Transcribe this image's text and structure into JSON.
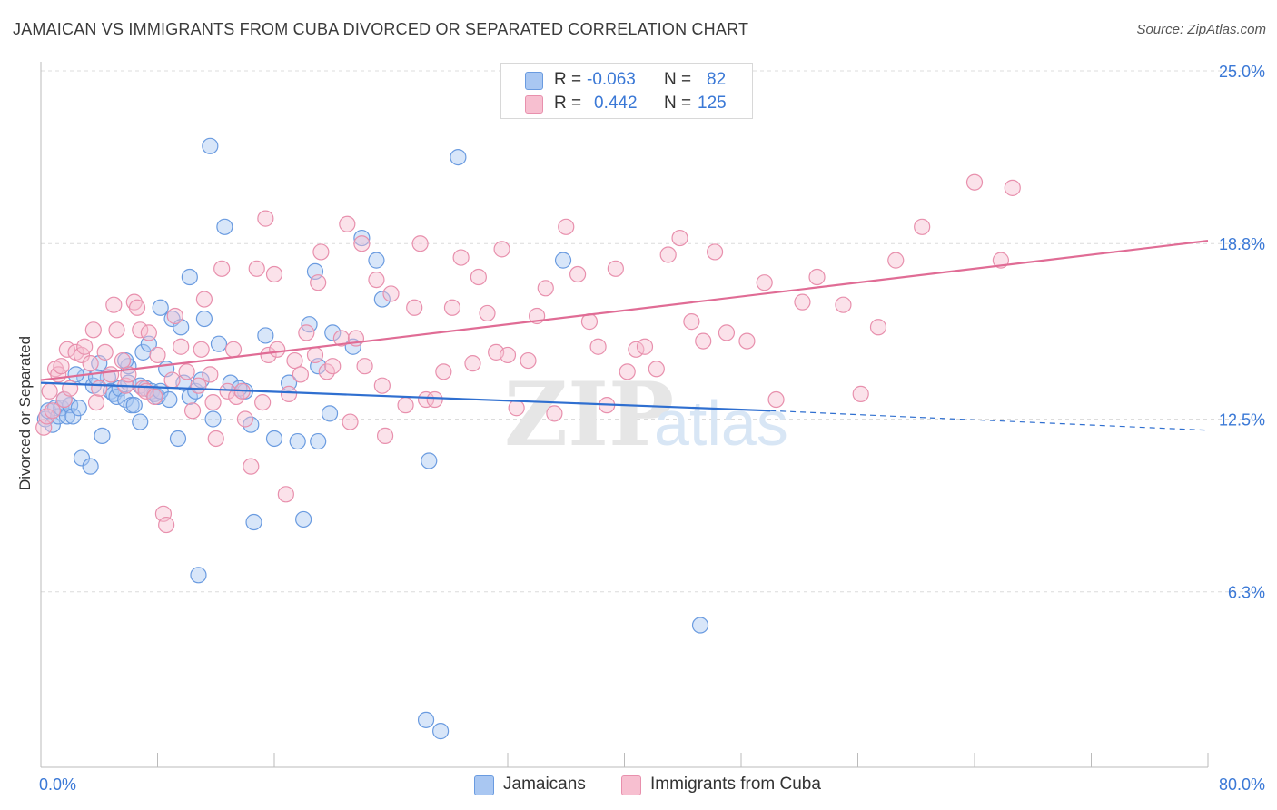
{
  "title": "JAMAICAN VS IMMIGRANTS FROM CUBA DIVORCED OR SEPARATED CORRELATION CHART",
  "source": "Source: ZipAtlas.com",
  "watermark": {
    "zip": "ZIP",
    "atlas": "atlas"
  },
  "legend": {
    "r_label": "R =",
    "n_label": "N =",
    "entries": [
      {
        "r": "-0.063",
        "n": "82",
        "color": "#a9c7f2",
        "border": "#6a9be0"
      },
      {
        "r": "0.442",
        "n": "125",
        "color": "#f7bfd0",
        "border": "#e890ad"
      }
    ]
  },
  "chart_data": {
    "type": "scatter",
    "xlabel": "",
    "ylabel": "Divorced or Separated",
    "xlim": [
      0,
      80
    ],
    "ylim": [
      0,
      25.0
    ],
    "x_tick_labels": [
      {
        "value": 0,
        "label": "0.0%"
      },
      {
        "value": 80,
        "label": "80.0%"
      }
    ],
    "y_tick_labels": [
      {
        "value": 6.3,
        "label": "6.3%"
      },
      {
        "value": 12.5,
        "label": "12.5%"
      },
      {
        "value": 18.8,
        "label": "18.8%"
      },
      {
        "value": 25.0,
        "label": "25.0%"
      }
    ],
    "grid": true,
    "series": [
      {
        "name": "Jamaicans",
        "color": "#6a9be0",
        "fill": "#a9c7f2",
        "line_color": "#2f6fd0",
        "trend": {
          "x0": 0,
          "y0": 13.8,
          "x1": 50,
          "y1": 12.8,
          "dash_to_x": 80,
          "dash_to_y": 12.1
        },
        "points": [
          [
            0.3,
            12.5
          ],
          [
            0.5,
            12.8
          ],
          [
            0.8,
            12.3
          ],
          [
            1,
            12.9
          ],
          [
            1.2,
            12.6
          ],
          [
            1.4,
            12.9
          ],
          [
            1.8,
            12.6
          ],
          [
            2,
            13
          ],
          [
            2.2,
            12.6
          ],
          [
            2.6,
            12.9
          ],
          [
            2.8,
            11.1
          ],
          [
            3,
            14
          ],
          [
            3.4,
            10.8
          ],
          [
            3.6,
            13.7
          ],
          [
            4,
            14.5
          ],
          [
            4.2,
            11.9
          ],
          [
            4.6,
            14
          ],
          [
            4.8,
            13.5
          ],
          [
            5,
            13.4
          ],
          [
            5.2,
            13.3
          ],
          [
            5.4,
            13.6
          ],
          [
            5.8,
            13.2
          ],
          [
            6,
            13.8
          ],
          [
            6,
            14.4
          ],
          [
            6.2,
            13
          ],
          [
            6.4,
            13
          ],
          [
            6.8,
            13.7
          ],
          [
            6.8,
            12.4
          ],
          [
            7,
            14.9
          ],
          [
            7.2,
            13.6
          ],
          [
            7.4,
            15.2
          ],
          [
            7.6,
            13.5
          ],
          [
            7.8,
            13.4
          ],
          [
            8,
            13.3
          ],
          [
            8.2,
            13.5
          ],
          [
            8.2,
            16.5
          ],
          [
            8.6,
            14.3
          ],
          [
            8.8,
            13.2
          ],
          [
            9,
            16.1
          ],
          [
            9.4,
            11.8
          ],
          [
            9.6,
            15.8
          ],
          [
            10.2,
            13.3
          ],
          [
            10.2,
            17.6
          ],
          [
            10.6,
            13.5
          ],
          [
            10.8,
            6.9
          ],
          [
            11,
            13.9
          ],
          [
            11.2,
            16.1
          ],
          [
            11.6,
            22.3
          ],
          [
            11.8,
            12.5
          ],
          [
            12.2,
            15.2
          ],
          [
            12.6,
            19.4
          ],
          [
            13,
            13.8
          ],
          [
            14,
            13.5
          ],
          [
            14.4,
            12.3
          ],
          [
            14.6,
            8.8
          ],
          [
            15.4,
            15.5
          ],
          [
            16,
            11.8
          ],
          [
            17,
            13.8
          ],
          [
            17.6,
            11.7
          ],
          [
            18,
            8.9
          ],
          [
            18.4,
            15.9
          ],
          [
            19,
            11.7
          ],
          [
            19,
            14.4
          ],
          [
            19.8,
            12.7
          ],
          [
            20,
            15.6
          ],
          [
            21.4,
            15.1
          ],
          [
            22,
            19
          ],
          [
            23,
            18.2
          ],
          [
            23.4,
            16.8
          ],
          [
            26.4,
            1.7
          ],
          [
            26.6,
            11
          ],
          [
            27.4,
            1.3
          ],
          [
            28.6,
            21.9
          ],
          [
            35.8,
            18.2
          ],
          [
            45.2,
            5.1
          ],
          [
            13.6,
            13.6
          ],
          [
            9.8,
            13.8
          ],
          [
            5.8,
            14.6
          ],
          [
            3.8,
            14
          ],
          [
            2.4,
            14.1
          ],
          [
            1.6,
            13.2
          ],
          [
            18.8,
            17.8
          ]
        ]
      },
      {
        "name": "Immigrants from Cuba",
        "color": "#e890ad",
        "fill": "#f7bfd0",
        "line_color": "#e06c95",
        "trend": {
          "x0": 0,
          "y0": 13.9,
          "x1": 80,
          "y1": 18.9
        },
        "points": [
          [
            0.2,
            12.2
          ],
          [
            0.4,
            12.6
          ],
          [
            0.6,
            13.5
          ],
          [
            0.8,
            12.8
          ],
          [
            1,
            14.3
          ],
          [
            1.2,
            14.1
          ],
          [
            1.4,
            14.4
          ],
          [
            1.6,
            13.2
          ],
          [
            1.8,
            15
          ],
          [
            2,
            13.6
          ],
          [
            2.4,
            14.9
          ],
          [
            2.8,
            14.8
          ],
          [
            3,
            15.1
          ],
          [
            3.4,
            14.5
          ],
          [
            3.6,
            15.7
          ],
          [
            3.8,
            13.1
          ],
          [
            4,
            13.6
          ],
          [
            4.4,
            14.9
          ],
          [
            4.8,
            14.1
          ],
          [
            5,
            16.6
          ],
          [
            5.2,
            15.7
          ],
          [
            5.6,
            14.6
          ],
          [
            5.8,
            13.7
          ],
          [
            6,
            14.1
          ],
          [
            6.4,
            16.7
          ],
          [
            6.6,
            16.5
          ],
          [
            6.8,
            15.7
          ],
          [
            7,
            13.6
          ],
          [
            7.2,
            13.5
          ],
          [
            7.4,
            15.6
          ],
          [
            7.8,
            13.3
          ],
          [
            8,
            14.8
          ],
          [
            8.4,
            9.1
          ],
          [
            8.6,
            8.7
          ],
          [
            9,
            13.9
          ],
          [
            9.2,
            16.2
          ],
          [
            9.6,
            15.1
          ],
          [
            10,
            14.2
          ],
          [
            10.4,
            12.8
          ],
          [
            10.8,
            13.7
          ],
          [
            11,
            15
          ],
          [
            11.2,
            16.8
          ],
          [
            11.6,
            14.1
          ],
          [
            11.8,
            13.1
          ],
          [
            12,
            11.8
          ],
          [
            12.4,
            17.9
          ],
          [
            12.8,
            13.5
          ],
          [
            13.2,
            15
          ],
          [
            13.4,
            13.3
          ],
          [
            13.8,
            13.5
          ],
          [
            14,
            12.5
          ],
          [
            14.4,
            10.8
          ],
          [
            14.8,
            17.9
          ],
          [
            15.2,
            13.1
          ],
          [
            15.4,
            19.7
          ],
          [
            15.6,
            14.8
          ],
          [
            16,
            17.7
          ],
          [
            16.2,
            15
          ],
          [
            16.8,
            9.8
          ],
          [
            17,
            13.4
          ],
          [
            17.4,
            14.6
          ],
          [
            17.8,
            14.1
          ],
          [
            18.2,
            15.6
          ],
          [
            18.8,
            14.8
          ],
          [
            19,
            17.4
          ],
          [
            19.2,
            18.5
          ],
          [
            19.6,
            14.2
          ],
          [
            20,
            14.4
          ],
          [
            20.6,
            15.4
          ],
          [
            21,
            19.5
          ],
          [
            21.2,
            12.4
          ],
          [
            21.6,
            15.4
          ],
          [
            22,
            18.8
          ],
          [
            22.2,
            14.4
          ],
          [
            23,
            17.5
          ],
          [
            23.4,
            13.7
          ],
          [
            23.6,
            11.9
          ],
          [
            24,
            17
          ],
          [
            25,
            13
          ],
          [
            25.6,
            16.5
          ],
          [
            26,
            18.8
          ],
          [
            26.4,
            13.2
          ],
          [
            27,
            13.2
          ],
          [
            27.6,
            14.2
          ],
          [
            28.2,
            16.5
          ],
          [
            28.8,
            18.3
          ],
          [
            29.6,
            14.5
          ],
          [
            30,
            17.6
          ],
          [
            30.6,
            16.3
          ],
          [
            31.2,
            14.9
          ],
          [
            31.6,
            18.6
          ],
          [
            32,
            14.8
          ],
          [
            32.6,
            12.9
          ],
          [
            33.4,
            14.6
          ],
          [
            34,
            16.2
          ],
          [
            34.6,
            17.2
          ],
          [
            35.2,
            12.7
          ],
          [
            36,
            19.4
          ],
          [
            36.8,
            17.7
          ],
          [
            37.6,
            16
          ],
          [
            38.2,
            15.1
          ],
          [
            38.8,
            13
          ],
          [
            39.4,
            17.9
          ],
          [
            40.2,
            14.2
          ],
          [
            40.8,
            15
          ],
          [
            41.4,
            15.1
          ],
          [
            42.2,
            14.3
          ],
          [
            43,
            18.4
          ],
          [
            43.8,
            19
          ],
          [
            44.6,
            16
          ],
          [
            45.4,
            15.3
          ],
          [
            46.2,
            18.5
          ],
          [
            47,
            15.6
          ],
          [
            48.4,
            15.3
          ],
          [
            49.6,
            17.4
          ],
          [
            50.4,
            13.2
          ],
          [
            52.2,
            16.7
          ],
          [
            53.2,
            17.6
          ],
          [
            55,
            16.6
          ],
          [
            56.2,
            13.4
          ],
          [
            57.4,
            15.8
          ],
          [
            58.6,
            18.2
          ],
          [
            60.4,
            19.4
          ],
          [
            64,
            21
          ],
          [
            65.8,
            18.2
          ],
          [
            66.6,
            20.8
          ]
        ]
      }
    ]
  },
  "bottom_legend": [
    {
      "label": "Jamaicans",
      "color": "#a9c7f2",
      "border": "#6a9be0"
    },
    {
      "label": "Immigrants from Cuba",
      "color": "#f7bfd0",
      "border": "#e890ad"
    }
  ]
}
